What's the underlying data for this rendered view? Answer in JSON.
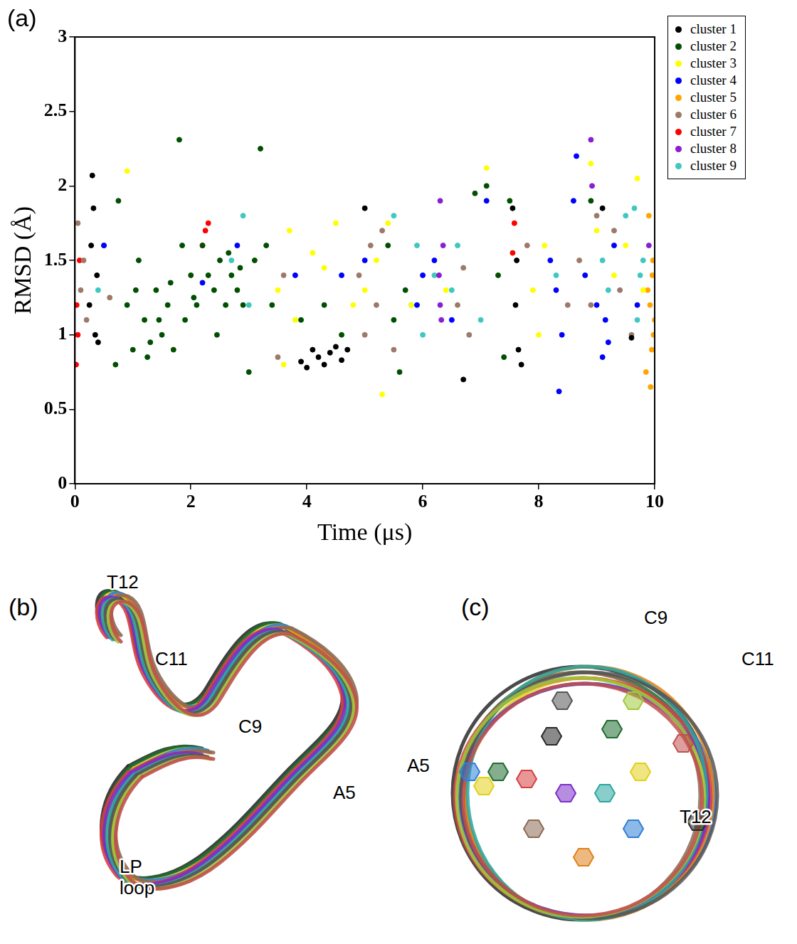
{
  "chart_data": {
    "type": "scatter",
    "xlabel": "Time (μs)",
    "ylabel": "RMSD (Å)",
    "xlim": [
      0,
      10
    ],
    "ylim": [
      0,
      3
    ],
    "xticks": [
      0,
      2,
      4,
      6,
      8,
      10
    ],
    "yticks": [
      0,
      0.5,
      1,
      1.5,
      2,
      2.5,
      3
    ],
    "grid": false,
    "legend": "right",
    "marker": "circle",
    "series": [
      {
        "name": "cluster 1",
        "color": "#000000",
        "x": [
          0.25,
          0.28,
          0.3,
          0.32,
          0.35,
          0.38,
          0.4,
          3.9,
          4.0,
          4.1,
          4.2,
          4.3,
          4.4,
          4.5,
          4.6,
          4.7,
          6.7,
          7.55,
          7.6,
          7.65,
          7.7,
          7.62,
          9.1,
          9.6,
          5.0
        ],
        "values": [
          1.2,
          1.6,
          2.07,
          1.85,
          1.0,
          1.4,
          0.95,
          0.82,
          0.78,
          0.9,
          0.85,
          0.8,
          0.88,
          0.92,
          0.83,
          0.9,
          0.7,
          1.85,
          1.2,
          0.9,
          0.8,
          1.5,
          1.85,
          0.98,
          1.85
        ]
      },
      {
        "name": "cluster 2",
        "color": "#005000",
        "x": [
          0.7,
          0.75,
          0.9,
          1.0,
          1.1,
          1.2,
          1.3,
          1.4,
          1.5,
          1.6,
          1.7,
          1.8,
          1.85,
          1.9,
          2.0,
          2.1,
          2.2,
          2.3,
          2.4,
          2.5,
          2.6,
          2.7,
          2.8,
          2.9,
          3.0,
          3.1,
          3.2,
          3.3,
          3.4,
          3.9,
          4.3,
          4.6,
          5.4,
          5.5,
          5.6,
          5.7,
          6.9,
          7.3,
          7.4,
          7.5,
          8.9,
          7.1,
          1.05,
          1.25,
          1.45,
          1.65,
          2.05,
          2.45,
          2.65,
          2.85
        ],
        "values": [
          0.8,
          1.9,
          1.2,
          0.9,
          1.5,
          1.1,
          0.95,
          1.3,
          1.0,
          1.2,
          0.9,
          2.31,
          1.6,
          1.1,
          1.4,
          1.2,
          1.6,
          1.4,
          1.3,
          1.5,
          1.2,
          1.4,
          1.3,
          1.2,
          0.75,
          1.5,
          2.25,
          1.6,
          1.2,
          1.1,
          1.2,
          1.0,
          1.6,
          1.1,
          0.75,
          1.3,
          1.95,
          1.4,
          0.85,
          1.9,
          1.9,
          2.0,
          1.3,
          0.85,
          1.1,
          1.35,
          1.25,
          1.0,
          1.55,
          1.45
        ]
      },
      {
        "name": "cluster 3",
        "color": "#ffff00",
        "x": [
          0.9,
          3.5,
          3.6,
          3.7,
          3.8,
          4.1,
          4.3,
          4.5,
          4.8,
          5.0,
          5.2,
          5.3,
          5.4,
          5.8,
          7.1,
          7.9,
          8.0,
          8.1,
          8.9,
          9.0,
          9.3,
          9.5,
          9.7,
          9.8,
          6.4
        ],
        "values": [
          2.1,
          1.3,
          0.8,
          1.7,
          1.1,
          1.55,
          1.45,
          1.75,
          1.2,
          1.3,
          1.5,
          0.6,
          1.75,
          1.2,
          2.12,
          1.3,
          1.0,
          1.6,
          2.15,
          1.7,
          1.4,
          1.6,
          2.05,
          1.3,
          1.3
        ]
      },
      {
        "name": "cluster 4",
        "color": "#0000ff",
        "x": [
          0.5,
          2.2,
          2.8,
          3.8,
          4.6,
          5.0,
          5.9,
          6.0,
          6.2,
          6.5,
          7.1,
          8.2,
          8.3,
          8.35,
          8.4,
          8.6,
          8.65,
          8.8,
          9.0,
          9.1,
          9.15,
          9.2,
          9.3,
          9.7
        ],
        "values": [
          1.6,
          1.35,
          1.6,
          1.4,
          1.4,
          1.5,
          1.2,
          1.4,
          1.5,
          1.1,
          1.9,
          1.5,
          1.3,
          0.62,
          1.0,
          1.9,
          2.2,
          1.4,
          1.2,
          0.85,
          1.1,
          0.95,
          1.6,
          1.2
        ]
      },
      {
        "name": "cluster 5",
        "color": "#ffa500",
        "x": [
          9.85,
          9.88,
          9.9,
          9.92,
          9.93,
          9.95,
          9.96,
          9.97,
          9.98,
          10.0
        ],
        "values": [
          0.75,
          1.3,
          1.8,
          1.2,
          0.65,
          0.9,
          1.4,
          1.5,
          1.0,
          1.1
        ]
      },
      {
        "name": "cluster 6",
        "color": "#9c7a6a",
        "x": [
          0.05,
          0.1,
          0.15,
          0.2,
          0.5,
          0.6,
          3.5,
          3.6,
          4.9,
          5.0,
          5.1,
          5.2,
          5.3,
          5.5,
          6.6,
          6.7,
          6.8,
          7.8,
          8.5,
          8.7,
          8.9,
          9.0,
          9.3,
          9.4,
          9.6
        ],
        "values": [
          1.75,
          1.3,
          1.5,
          1.1,
          1.6,
          1.25,
          0.85,
          1.4,
          1.4,
          1.0,
          1.6,
          1.2,
          1.7,
          0.9,
          1.2,
          1.45,
          1.0,
          1.6,
          1.2,
          1.5,
          1.2,
          1.8,
          1.7,
          1.3,
          1.0
        ]
      },
      {
        "name": "cluster 7",
        "color": "#ff0000",
        "x": [
          0.02,
          0.03,
          0.05,
          0.08,
          2.2,
          2.25,
          2.3,
          7.55,
          7.58
        ],
        "values": [
          0.8,
          1.2,
          1.0,
          1.5,
          1.6,
          1.7,
          1.75,
          1.55,
          1.75
        ]
      },
      {
        "name": "cluster 8",
        "color": "#8a1fd0",
        "x": [
          6.28,
          6.3,
          6.3,
          6.32,
          6.35,
          8.9,
          8.92,
          9.9
        ],
        "values": [
          1.4,
          1.9,
          1.2,
          1.1,
          1.6,
          2.31,
          2.0,
          1.6
        ]
      },
      {
        "name": "cluster 9",
        "color": "#40c8c0",
        "x": [
          0.4,
          2.7,
          2.9,
          3.0,
          5.5,
          5.8,
          5.9,
          6.0,
          6.2,
          6.5,
          6.6,
          7.0,
          8.3,
          9.1,
          9.2,
          9.5,
          9.65,
          9.7,
          9.75,
          9.8
        ],
        "values": [
          1.3,
          1.5,
          1.8,
          1.2,
          1.8,
          1.2,
          1.6,
          1.0,
          1.4,
          1.3,
          1.6,
          1.1,
          1.4,
          1.5,
          1.3,
          1.8,
          1.85,
          1.1,
          1.4,
          1.5
        ]
      }
    ]
  },
  "figure": {
    "panel_labels": {
      "a": "(a)",
      "b": "(b)",
      "c": "(c)"
    },
    "structure_b": {
      "labels": [
        "T12",
        "C11",
        "C9",
        "A5",
        "LP loop"
      ]
    },
    "structure_c": {
      "labels": [
        "C9",
        "C11",
        "A5",
        "T12"
      ]
    }
  }
}
